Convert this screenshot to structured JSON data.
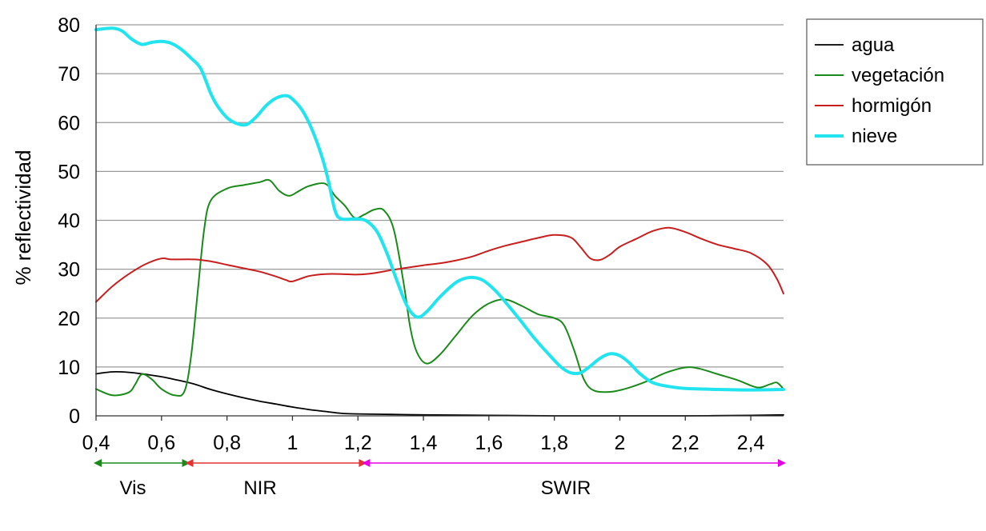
{
  "chart_data": {
    "type": "line",
    "title": "",
    "xlabel": "",
    "ylabel": "% reflectividad",
    "xlim": [
      0.4,
      2.5
    ],
    "ylim": [
      0,
      80
    ],
    "grid": true,
    "legend_position": "top-right",
    "x_ticks": [
      {
        "value": 0.4,
        "label": "0,4"
      },
      {
        "value": 0.6,
        "label": "0,6"
      },
      {
        "value": 0.8,
        "label": "0,8"
      },
      {
        "value": 1.0,
        "label": "1"
      },
      {
        "value": 1.2,
        "label": "1,2"
      },
      {
        "value": 1.4,
        "label": "1,4"
      },
      {
        "value": 1.6,
        "label": "1,6"
      },
      {
        "value": 1.8,
        "label": "1,8"
      },
      {
        "value": 2.0,
        "label": "2"
      },
      {
        "value": 2.2,
        "label": "2,2"
      },
      {
        "value": 2.4,
        "label": "2,4"
      }
    ],
    "y_ticks": [
      {
        "value": 0,
        "label": "0"
      },
      {
        "value": 10,
        "label": "10"
      },
      {
        "value": 20,
        "label": "20"
      },
      {
        "value": 30,
        "label": "30"
      },
      {
        "value": 40,
        "label": "40"
      },
      {
        "value": 50,
        "label": "50"
      },
      {
        "value": 60,
        "label": "60"
      },
      {
        "value": 70,
        "label": "70"
      },
      {
        "value": 80,
        "label": "80"
      }
    ],
    "series": [
      {
        "name": "agua",
        "color": "#000000",
        "points": [
          [
            0.4,
            8.6
          ],
          [
            0.45,
            9.0
          ],
          [
            0.5,
            8.9
          ],
          [
            0.55,
            8.5
          ],
          [
            0.6,
            8.0
          ],
          [
            0.65,
            7.3
          ],
          [
            0.7,
            6.5
          ],
          [
            0.75,
            5.4
          ],
          [
            0.8,
            4.5
          ],
          [
            0.85,
            3.7
          ],
          [
            0.9,
            3.0
          ],
          [
            0.95,
            2.4
          ],
          [
            1.0,
            1.8
          ],
          [
            1.05,
            1.3
          ],
          [
            1.1,
            0.9
          ],
          [
            1.15,
            0.5
          ],
          [
            1.2,
            0.4
          ],
          [
            1.3,
            0.3
          ],
          [
            1.4,
            0.2
          ],
          [
            1.6,
            0.1
          ],
          [
            1.8,
            0.0
          ],
          [
            2.0,
            0.0
          ],
          [
            2.2,
            0.0
          ],
          [
            2.4,
            0.1
          ],
          [
            2.5,
            0.2
          ]
        ]
      },
      {
        "name": "vegetación",
        "color": "#1a8a1a",
        "points": [
          [
            0.4,
            5.5
          ],
          [
            0.45,
            4.2
          ],
          [
            0.5,
            4.8
          ],
          [
            0.52,
            6.5
          ],
          [
            0.54,
            8.5
          ],
          [
            0.57,
            7.5
          ],
          [
            0.6,
            5.5
          ],
          [
            0.64,
            4.2
          ],
          [
            0.67,
            5.0
          ],
          [
            0.69,
            12.0
          ],
          [
            0.71,
            25.0
          ],
          [
            0.73,
            38.0
          ],
          [
            0.75,
            44.0
          ],
          [
            0.8,
            46.5
          ],
          [
            0.85,
            47.2
          ],
          [
            0.9,
            47.8
          ],
          [
            0.93,
            48.2
          ],
          [
            0.96,
            46.0
          ],
          [
            0.99,
            45.0
          ],
          [
            1.02,
            46.0
          ],
          [
            1.05,
            47.0
          ],
          [
            1.1,
            47.5
          ],
          [
            1.13,
            45.0
          ],
          [
            1.16,
            43.0
          ],
          [
            1.19,
            40.5
          ],
          [
            1.22,
            41.2
          ],
          [
            1.25,
            42.2
          ],
          [
            1.28,
            42.0
          ],
          [
            1.31,
            38.0
          ],
          [
            1.34,
            27.0
          ],
          [
            1.36,
            18.0
          ],
          [
            1.38,
            13.0
          ],
          [
            1.41,
            10.7
          ],
          [
            1.45,
            12.5
          ],
          [
            1.5,
            16.5
          ],
          [
            1.55,
            20.5
          ],
          [
            1.6,
            23.0
          ],
          [
            1.65,
            23.8
          ],
          [
            1.7,
            22.5
          ],
          [
            1.75,
            20.8
          ],
          [
            1.8,
            20.0
          ],
          [
            1.83,
            18.5
          ],
          [
            1.86,
            13.5
          ],
          [
            1.89,
            7.5
          ],
          [
            1.92,
            5.2
          ],
          [
            1.97,
            4.9
          ],
          [
            2.02,
            5.6
          ],
          [
            2.08,
            7.0
          ],
          [
            2.14,
            8.8
          ],
          [
            2.2,
            9.9
          ],
          [
            2.24,
            9.7
          ],
          [
            2.3,
            8.5
          ],
          [
            2.36,
            7.3
          ],
          [
            2.42,
            5.8
          ],
          [
            2.46,
            6.5
          ],
          [
            2.48,
            6.8
          ],
          [
            2.5,
            5.5
          ]
        ]
      },
      {
        "name": "hormigón",
        "color": "#c81e1e",
        "points": [
          [
            0.4,
            23.3
          ],
          [
            0.45,
            26.5
          ],
          [
            0.5,
            29.0
          ],
          [
            0.55,
            31.0
          ],
          [
            0.6,
            32.2
          ],
          [
            0.63,
            32.0
          ],
          [
            0.7,
            32.0
          ],
          [
            0.75,
            31.6
          ],
          [
            0.8,
            30.9
          ],
          [
            0.85,
            30.2
          ],
          [
            0.9,
            29.5
          ],
          [
            0.95,
            28.5
          ],
          [
            0.98,
            27.8
          ],
          [
            1.0,
            27.5
          ],
          [
            1.05,
            28.6
          ],
          [
            1.1,
            29.0
          ],
          [
            1.15,
            29.0
          ],
          [
            1.2,
            28.9
          ],
          [
            1.25,
            29.2
          ],
          [
            1.3,
            29.8
          ],
          [
            1.35,
            30.3
          ],
          [
            1.4,
            30.8
          ],
          [
            1.45,
            31.2
          ],
          [
            1.5,
            31.8
          ],
          [
            1.55,
            32.6
          ],
          [
            1.6,
            33.8
          ],
          [
            1.65,
            34.8
          ],
          [
            1.7,
            35.6
          ],
          [
            1.75,
            36.4
          ],
          [
            1.8,
            37.0
          ],
          [
            1.85,
            36.5
          ],
          [
            1.88,
            34.5
          ],
          [
            1.91,
            32.2
          ],
          [
            1.94,
            31.9
          ],
          [
            1.97,
            33.0
          ],
          [
            2.0,
            34.6
          ],
          [
            2.05,
            36.2
          ],
          [
            2.1,
            37.8
          ],
          [
            2.15,
            38.5
          ],
          [
            2.2,
            37.6
          ],
          [
            2.25,
            36.2
          ],
          [
            2.3,
            35.0
          ],
          [
            2.35,
            34.2
          ],
          [
            2.4,
            33.3
          ],
          [
            2.45,
            31.0
          ],
          [
            2.48,
            28.0
          ],
          [
            2.5,
            25.0
          ]
        ]
      },
      {
        "name": "nieve",
        "color": "#22e4ee",
        "points": [
          [
            0.4,
            79.0
          ],
          [
            0.45,
            79.3
          ],
          [
            0.48,
            78.7
          ],
          [
            0.51,
            77.0
          ],
          [
            0.54,
            76.0
          ],
          [
            0.57,
            76.4
          ],
          [
            0.6,
            76.6
          ],
          [
            0.63,
            76.2
          ],
          [
            0.66,
            75.0
          ],
          [
            0.69,
            73.2
          ],
          [
            0.72,
            71.0
          ],
          [
            0.75,
            66.0
          ],
          [
            0.77,
            63.5
          ],
          [
            0.8,
            61.0
          ],
          [
            0.83,
            59.8
          ],
          [
            0.86,
            59.6
          ],
          [
            0.89,
            61.2
          ],
          [
            0.92,
            63.5
          ],
          [
            0.95,
            65.0
          ],
          [
            0.98,
            65.5
          ],
          [
            1.0,
            64.8
          ],
          [
            1.03,
            62.5
          ],
          [
            1.06,
            58.5
          ],
          [
            1.09,
            53.0
          ],
          [
            1.11,
            48.0
          ],
          [
            1.13,
            42.0
          ],
          [
            1.15,
            40.3
          ],
          [
            1.2,
            40.3
          ],
          [
            1.23,
            39.7
          ],
          [
            1.26,
            37.5
          ],
          [
            1.29,
            33.0
          ],
          [
            1.32,
            27.5
          ],
          [
            1.35,
            22.5
          ],
          [
            1.38,
            20.2
          ],
          [
            1.41,
            21.3
          ],
          [
            1.45,
            24.3
          ],
          [
            1.5,
            27.3
          ],
          [
            1.54,
            28.3
          ],
          [
            1.58,
            27.8
          ],
          [
            1.62,
            25.6
          ],
          [
            1.66,
            22.5
          ],
          [
            1.7,
            19.2
          ],
          [
            1.74,
            15.8
          ],
          [
            1.78,
            12.8
          ],
          [
            1.82,
            10.0
          ],
          [
            1.85,
            8.8
          ],
          [
            1.88,
            8.8
          ],
          [
            1.91,
            10.2
          ],
          [
            1.94,
            11.8
          ],
          [
            1.97,
            12.7
          ],
          [
            2.0,
            12.3
          ],
          [
            2.03,
            10.8
          ],
          [
            2.06,
            8.7
          ],
          [
            2.1,
            6.8
          ],
          [
            2.15,
            6.0
          ],
          [
            2.2,
            5.6
          ],
          [
            2.3,
            5.4
          ],
          [
            2.4,
            5.3
          ],
          [
            2.5,
            5.4
          ]
        ]
      }
    ],
    "bands": [
      {
        "name": "Vis",
        "from": 0.4,
        "to": 0.68,
        "color": "#1a8a1a"
      },
      {
        "name": "NIR",
        "from": 0.68,
        "to": 1.22,
        "color": "#e63232"
      },
      {
        "name": "SWIR",
        "from": 1.22,
        "to": 2.5,
        "color": "#e600e6"
      }
    ]
  }
}
